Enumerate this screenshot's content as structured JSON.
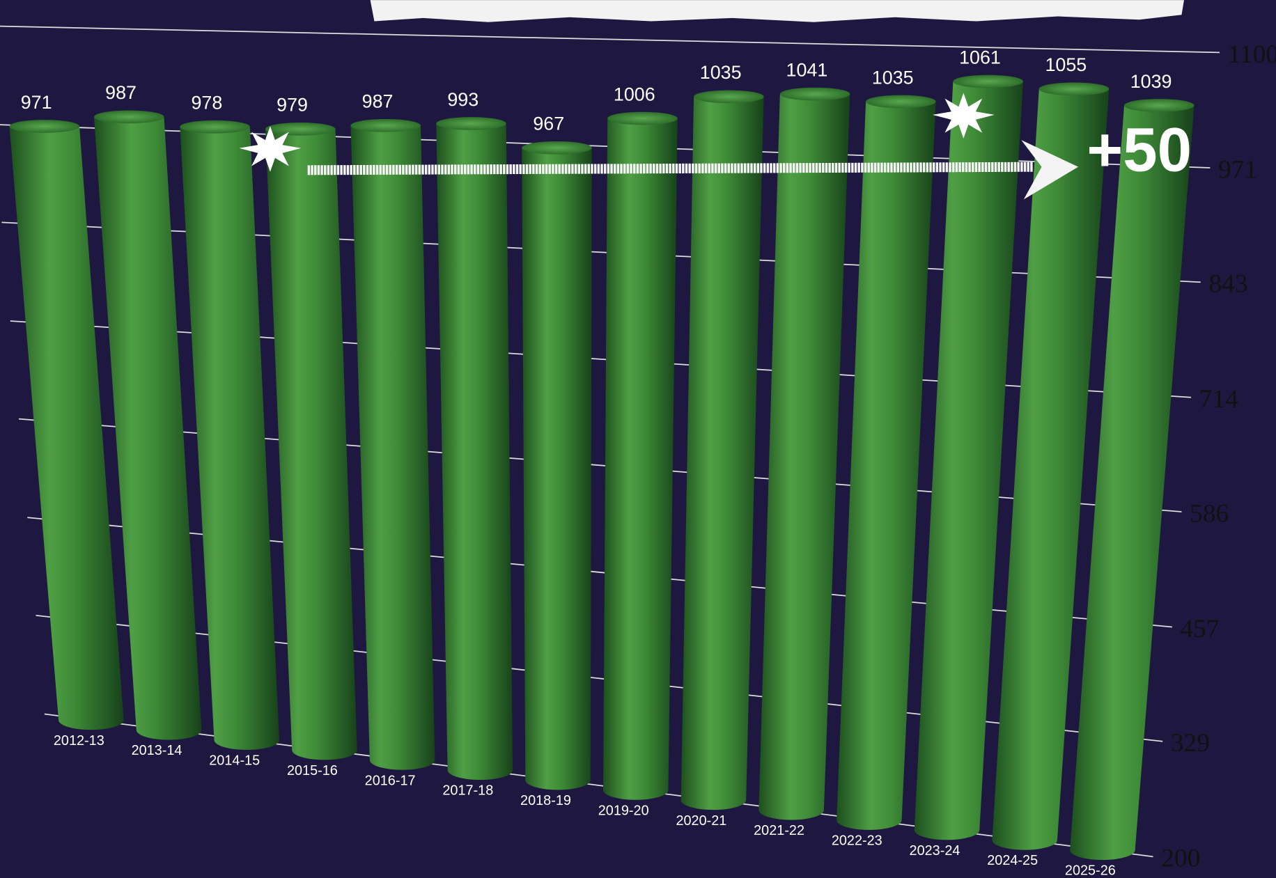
{
  "chart_data": {
    "type": "bar",
    "categories": [
      "2012-13",
      "2013-14",
      "2014-15",
      "2015-16",
      "2016-17",
      "2017-18",
      "2018-19",
      "2019-20",
      "2020-21",
      "2021-22",
      "2022-23",
      "2023-24",
      "2024-25",
      "2025-26"
    ],
    "values": [
      971,
      987,
      978,
      979,
      987,
      993,
      967,
      1006,
      1035,
      1041,
      1035,
      1061,
      1055,
      1039
    ],
    "color": "#3f8f38",
    "ylim": [
      200,
      1100
    ],
    "yticks": [
      200,
      329,
      457,
      586,
      714,
      843,
      971,
      1100
    ],
    "grid": true,
    "annotation": "+50"
  }
}
